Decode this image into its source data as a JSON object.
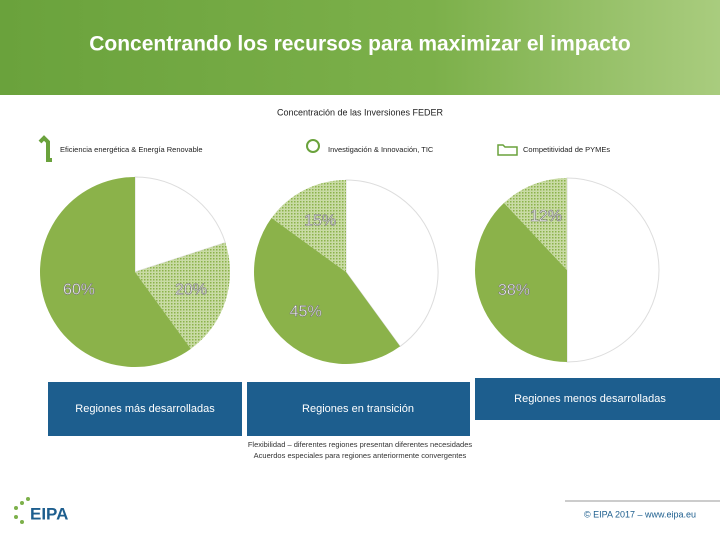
{
  "slide": {
    "title": "Concentrando los recursos para maximizar el impacto",
    "subtitle": "Concentración de las Inversiones FEDER",
    "legend": [
      "Eficiencia energética & Energía Renovable",
      "Investigación & Innovación, TIC",
      "Competitividad de PYMEs"
    ],
    "notes": [
      "Flexibilidad – diferentes regiones presentan diferentes necesidades",
      "Acuerdos especiales para regiones anteriormente convergentes"
    ],
    "logo": "EIPA",
    "footer": "© EIPA 2017 – www.eipa.eu"
  },
  "chart_data": [
    {
      "type": "pie",
      "title": "Regiones más desarrolladas",
      "values": [
        20,
        20,
        60
      ],
      "value_labels": [
        null,
        "20%",
        "60%"
      ],
      "colors": [
        "#ffffff",
        "#b5cd84",
        "#8bb24a"
      ],
      "hatched": [
        false,
        true,
        false
      ]
    },
    {
      "type": "pie",
      "title": "Regiones en transición",
      "values": [
        40,
        45,
        15
      ],
      "value_labels": [
        null,
        "45%",
        "15%"
      ],
      "colors": [
        "#ffffff",
        "#8bb24a",
        "#b5cd84"
      ],
      "hatched": [
        false,
        false,
        true
      ]
    },
    {
      "type": "pie",
      "title": "Regiones menos desarrolladas",
      "values": [
        50,
        38,
        12
      ],
      "value_labels": [
        null,
        "38%",
        "12%"
      ],
      "colors": [
        "#ffffff",
        "#8bb24a",
        "#b5cd84"
      ],
      "hatched": [
        false,
        false,
        true
      ]
    }
  ]
}
